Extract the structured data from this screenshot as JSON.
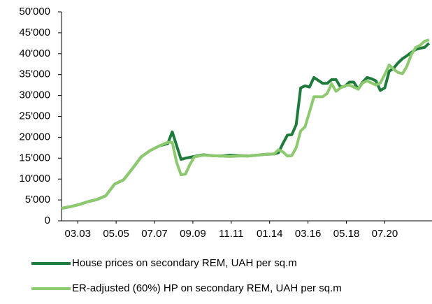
{
  "chart_data": {
    "type": "line",
    "x": [
      "04.02",
      "10.02",
      "04.03",
      "10.03",
      "04.04",
      "10.04",
      "04.05",
      "10.05",
      "04.06",
      "10.06",
      "04.07",
      "10.07",
      "04.08",
      "07.08",
      "10.08",
      "01.09",
      "04.09",
      "07.09",
      "10.09",
      "04.10",
      "10.10",
      "04.11",
      "10.11",
      "04.12",
      "10.12",
      "04.13",
      "10.13",
      "04.14",
      "07.14",
      "10.14",
      "01.15",
      "04.15",
      "07.15",
      "10.15",
      "01.16",
      "04.16",
      "07.16",
      "10.16",
      "01.17",
      "04.17",
      "07.17",
      "10.17",
      "01.18",
      "04.18",
      "07.18",
      "10.18",
      "01.19",
      "04.19",
      "07.19",
      "10.19",
      "01.20",
      "04.20",
      "07.20",
      "10.20",
      "01.21",
      "04.21",
      "07.21",
      "10.21",
      "01.22",
      "04.22",
      "07.22",
      "10.22",
      "01.23"
    ],
    "series": [
      {
        "name": "House prices on secondary REM, UAH per sq.m",
        "color": "#1e7b3c",
        "values": [
          3000,
          3400,
          3900,
          4600,
          5100,
          6000,
          8800,
          9800,
          12500,
          15300,
          16800,
          17900,
          18500,
          21300,
          18000,
          14700,
          15000,
          15200,
          15400,
          15800,
          15600,
          15500,
          15700,
          15600,
          15500,
          15700,
          15900,
          16000,
          16300,
          18500,
          20500,
          20600,
          23000,
          31800,
          32300,
          32000,
          34300,
          33600,
          32900,
          32900,
          33800,
          33800,
          32000,
          32200,
          33200,
          33200,
          31500,
          33200,
          34300,
          34000,
          33500,
          31200,
          31800,
          35800,
          36500,
          37800,
          38800,
          39500,
          40300,
          41000,
          41300,
          41500,
          42500
        ]
      },
      {
        "name": "ER-adjusted (60%) HP on secondary REM, UAH per sq.m",
        "color": "#8dc96f",
        "values": [
          3000,
          3400,
          3900,
          4600,
          5100,
          6000,
          8800,
          9800,
          12500,
          15300,
          16800,
          17900,
          18800,
          18800,
          14000,
          11000,
          11200,
          13500,
          15300,
          15700,
          15600,
          15500,
          15400,
          15500,
          15500,
          15700,
          15900,
          16000,
          17000,
          16500,
          15500,
          15600,
          17500,
          21500,
          22500,
          26000,
          29700,
          29700,
          29700,
          30500,
          32800,
          31000,
          31800,
          32300,
          32500,
          32000,
          31500,
          33000,
          33500,
          33000,
          32500,
          33000,
          35000,
          37300,
          36300,
          35500,
          35200,
          37000,
          39800,
          41500,
          42000,
          43000,
          43300
        ]
      }
    ],
    "xlim": [
      "04.02",
      "03.23"
    ],
    "xticks": [
      "03.03",
      "05.05",
      "07.07",
      "09.09",
      "11.11",
      "01.14",
      "03.16",
      "05.18",
      "07.20"
    ],
    "ylim": [
      0,
      50000
    ],
    "yticks": [
      0,
      {
        "value": 5000,
        "label": "5'000"
      },
      {
        "value": 10000,
        "label": "10'000"
      },
      {
        "value": 15000,
        "label": "15'000"
      },
      {
        "value": 20000,
        "label": "20'000"
      },
      {
        "value": 25000,
        "label": "25'000"
      },
      {
        "value": 30000,
        "label": "30'000"
      },
      {
        "value": 35000,
        "label": "35'000"
      },
      {
        "value": 40000,
        "label": "40'000"
      },
      {
        "value": 45000,
        "label": "45'000"
      },
      {
        "value": 50000,
        "label": "50'000"
      }
    ],
    "grid": false,
    "legend": "bottom"
  }
}
